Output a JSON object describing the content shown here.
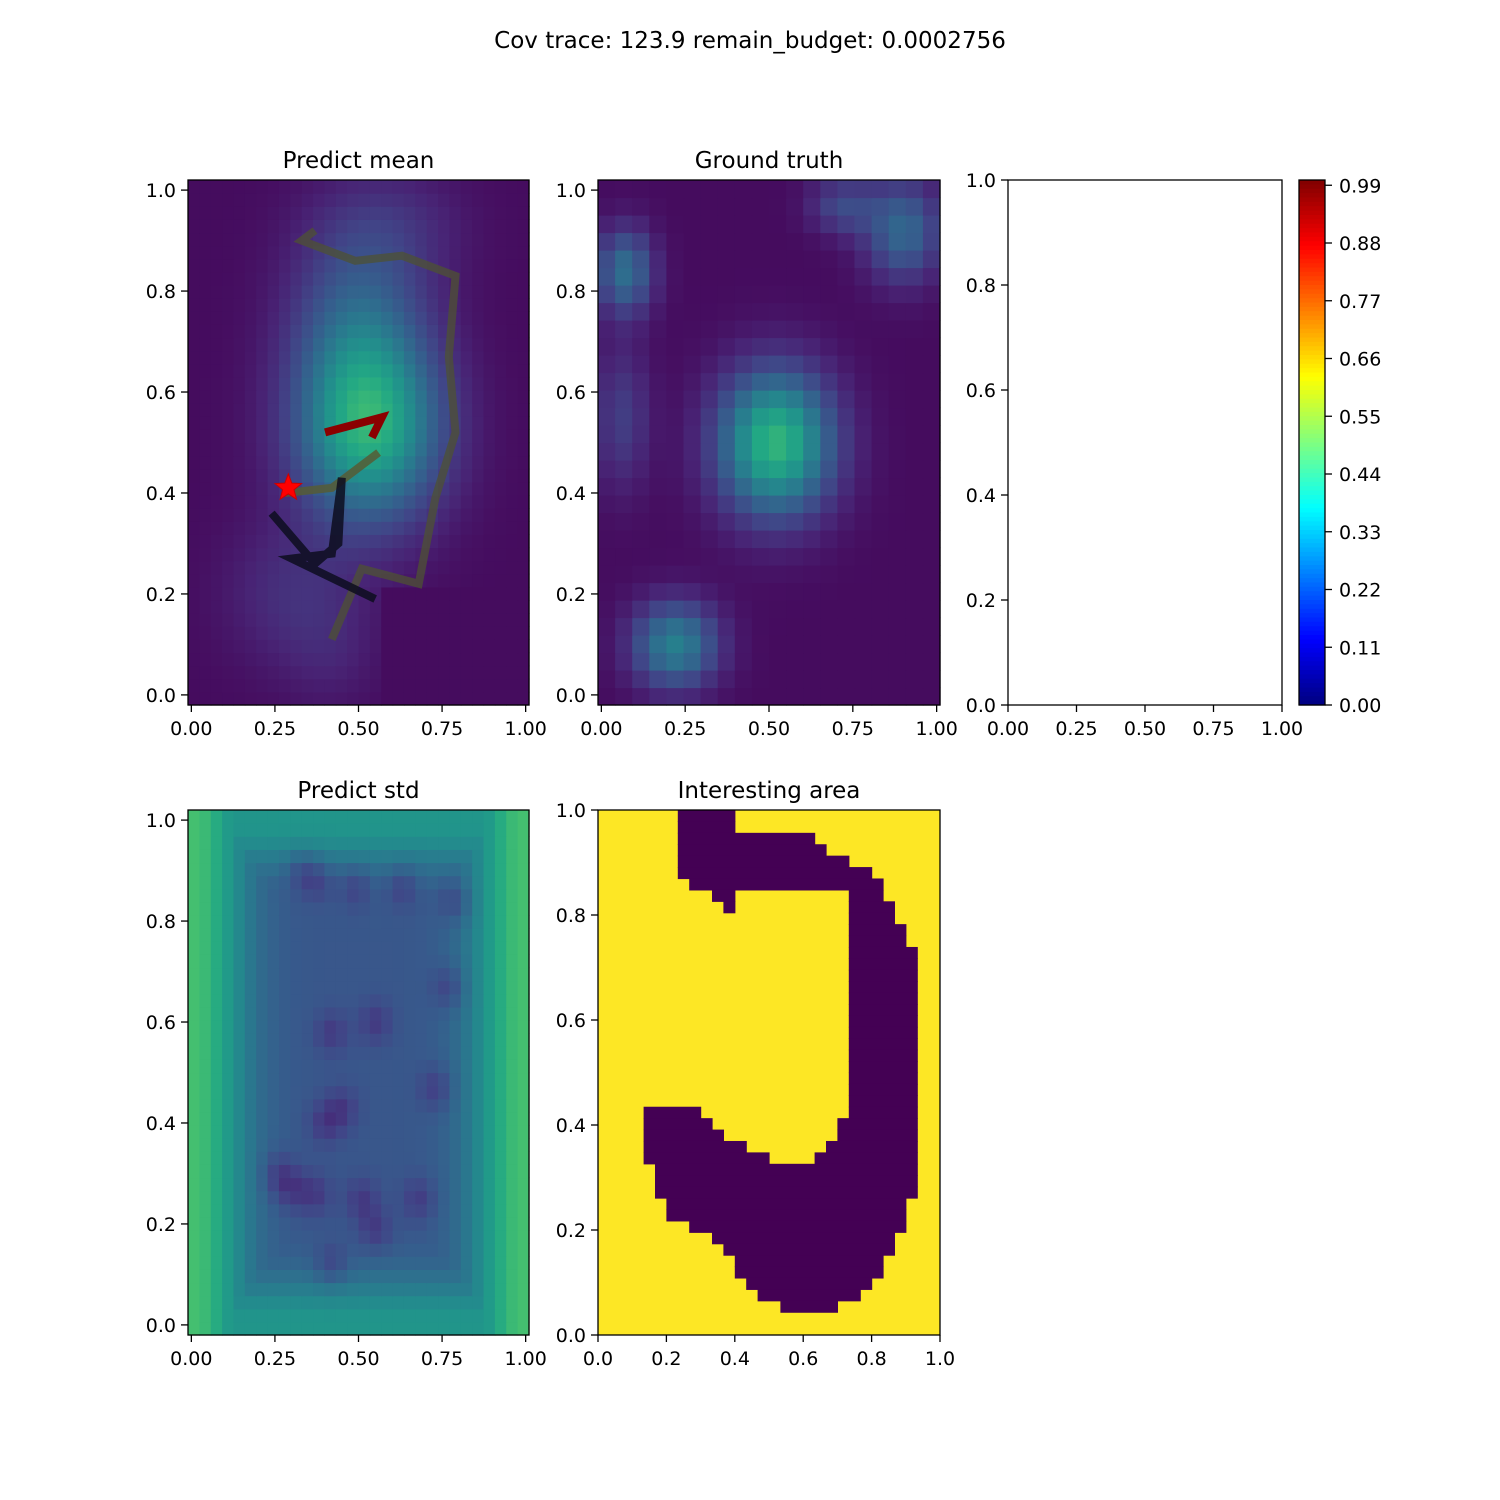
{
  "figure_title": "Cov trace: 123.9  remain_budget: 0.0002756",
  "chart_data": [
    {
      "id": "predict-mean",
      "type": "heatmap",
      "title": "Predict mean",
      "colormap": "viridis",
      "grid": false,
      "xlim": [
        -0.01,
        1.01
      ],
      "ylim": [
        -0.02,
        1.02
      ],
      "xticks": [
        "0.00",
        "0.25",
        "0.50",
        "0.75",
        "1.00"
      ],
      "yticks": [
        "0.0",
        "0.2",
        "0.4",
        "0.6",
        "0.8",
        "1.0"
      ],
      "field": {
        "nx": 30,
        "ny": 40,
        "base": 0.03,
        "blobs": [
          {
            "x": 0.53,
            "y": 0.53,
            "sx": 0.15,
            "sy": 0.13,
            "a": 0.6
          },
          {
            "x": 0.5,
            "y": 0.75,
            "sx": 0.14,
            "sy": 0.12,
            "a": 0.22
          },
          {
            "x": 0.58,
            "y": 0.93,
            "sx": 0.16,
            "sy": 0.08,
            "a": 0.1
          },
          {
            "x": 0.3,
            "y": 0.2,
            "sx": 0.14,
            "sy": 0.1,
            "a": 0.1
          },
          {
            "x": 0.42,
            "y": 0.08,
            "sx": 0.1,
            "sy": 0.08,
            "a": 0.05
          }
        ],
        "cutoff": {
          "x_min": 0.56,
          "y_max": 0.22,
          "value": 0.03
        }
      },
      "paths": [
        {
          "name": "trajectory-old",
          "color": "#4d5233",
          "opacity": 0.75,
          "points": [
            [
              0.42,
              0.11
            ],
            [
              0.51,
              0.25
            ],
            [
              0.68,
              0.22
            ],
            [
              0.73,
              0.39
            ],
            [
              0.79,
              0.52
            ],
            [
              0.77,
              0.67
            ],
            [
              0.79,
              0.83
            ],
            [
              0.63,
              0.87
            ],
            [
              0.49,
              0.86
            ],
            [
              0.33,
              0.9
            ],
            [
              0.37,
              0.92
            ],
            [
              0.33,
              0.9
            ]
          ]
        },
        {
          "name": "trajectory-mid",
          "color": "#565c35",
          "opacity": 0.85,
          "points": [
            [
              0.28,
              0.4
            ],
            [
              0.42,
              0.41
            ],
            [
              0.56,
              0.48
            ]
          ]
        },
        {
          "name": "trajectory-recent",
          "color": "#0d0d1f",
          "opacity": 0.85,
          "points": [
            [
              0.24,
              0.36
            ],
            [
              0.37,
              0.26
            ],
            [
              0.44,
              0.3
            ],
            [
              0.45,
              0.43
            ],
            [
              0.42,
              0.28
            ],
            [
              0.3,
              0.27
            ],
            [
              0.55,
              0.19
            ]
          ]
        },
        {
          "name": "trajectory-current",
          "color": "#8b0000",
          "opacity": 1.0,
          "points": [
            [
              0.4,
              0.52
            ],
            [
              0.57,
              0.55
            ],
            [
              0.54,
              0.51
            ]
          ]
        }
      ],
      "marker": {
        "type": "star",
        "x": 0.29,
        "y": 0.41,
        "color": "#ff0000"
      }
    },
    {
      "id": "ground-truth",
      "type": "heatmap",
      "title": "Ground truth",
      "colormap": "viridis",
      "grid": false,
      "xlim": [
        -0.01,
        1.01
      ],
      "ylim": [
        -0.02,
        1.02
      ],
      "xticks": [
        "0.00",
        "0.25",
        "0.50",
        "0.75",
        "1.00"
      ],
      "yticks": [
        "0.0",
        "0.2",
        "0.4",
        "0.6",
        "0.8",
        "1.0"
      ],
      "field": {
        "nx": 20,
        "ny": 30,
        "base": 0.03,
        "blobs": [
          {
            "x": 0.52,
            "y": 0.5,
            "sx": 0.12,
            "sy": 0.1,
            "a": 0.62
          },
          {
            "x": 0.22,
            "y": 0.1,
            "sx": 0.09,
            "sy": 0.06,
            "a": 0.4
          },
          {
            "x": 0.07,
            "y": 0.84,
            "sx": 0.06,
            "sy": 0.06,
            "a": 0.33
          },
          {
            "x": 0.9,
            "y": 0.92,
            "sx": 0.08,
            "sy": 0.07,
            "a": 0.3
          },
          {
            "x": 0.72,
            "y": 0.97,
            "sx": 0.07,
            "sy": 0.04,
            "a": 0.18
          },
          {
            "x": 0.06,
            "y": 0.55,
            "sx": 0.06,
            "sy": 0.1,
            "a": 0.15
          }
        ]
      }
    },
    {
      "id": "empty-axes",
      "type": "heatmap",
      "title": "",
      "xlim": [
        0,
        1
      ],
      "ylim": [
        0,
        1
      ],
      "xticks": [
        "0.00",
        "0.25",
        "0.50",
        "0.75",
        "1.00"
      ],
      "yticks": [
        "0.0",
        "0.2",
        "0.4",
        "0.6",
        "0.8",
        "1.0"
      ]
    },
    {
      "id": "colorbar",
      "type": "heatmap",
      "title": "",
      "colormap": "jet",
      "range": [
        0,
        1
      ],
      "ticks": [
        "0.00",
        "0.11",
        "0.22",
        "0.33",
        "0.44",
        "0.55",
        "0.66",
        "0.77",
        "0.88",
        "0.99"
      ],
      "tick_values": [
        0,
        0.11,
        0.22,
        0.33,
        0.44,
        0.55,
        0.66,
        0.77,
        0.88,
        0.99
      ]
    },
    {
      "id": "predict-std",
      "type": "heatmap",
      "title": "Predict std",
      "colormap": "viridis",
      "grid": false,
      "xlim": [
        -0.01,
        1.01
      ],
      "ylim": [
        -0.02,
        1.02
      ],
      "xticks": [
        "0.00",
        "0.25",
        "0.50",
        "0.75",
        "1.00"
      ],
      "yticks": [
        "0.0",
        "0.2",
        "0.4",
        "0.6",
        "0.8",
        "1.0"
      ],
      "field": {
        "nx": 30,
        "ny": 40,
        "mode": "std",
        "edge_high": 0.7,
        "interior_low": 0.27,
        "dips": [
          [
            0.33,
            0.9
          ],
          [
            0.38,
            0.88
          ],
          [
            0.49,
            0.87
          ],
          [
            0.63,
            0.87
          ],
          [
            0.79,
            0.84
          ],
          [
            0.77,
            0.67
          ],
          [
            0.55,
            0.6
          ],
          [
            0.42,
            0.58
          ],
          [
            0.73,
            0.47
          ],
          [
            0.45,
            0.43
          ],
          [
            0.4,
            0.4
          ],
          [
            0.37,
            0.26
          ],
          [
            0.3,
            0.27
          ],
          [
            0.26,
            0.3
          ],
          [
            0.51,
            0.25
          ],
          [
            0.55,
            0.19
          ],
          [
            0.42,
            0.12
          ],
          [
            0.68,
            0.25
          ]
        ]
      }
    },
    {
      "id": "interesting-area",
      "type": "heatmap",
      "title": "Interesting area",
      "colormap": "binary-viridis",
      "grid": false,
      "xlim": [
        0,
        1
      ],
      "ylim": [
        0,
        1
      ],
      "xticks": [
        "0.0",
        "0.2",
        "0.4",
        "0.6",
        "0.8",
        "1.0"
      ],
      "yticks": [
        "0.0",
        "0.2",
        "0.4",
        "0.6",
        "0.8",
        "1.0"
      ],
      "mask": {
        "nx": 30,
        "ny": 46,
        "dark_runs": [
          [
            [
              7,
              12
            ]
          ],
          [
            [
              7,
              12
            ]
          ],
          [
            [
              7,
              19
            ]
          ],
          [
            [
              7,
              20
            ]
          ],
          [
            [
              7,
              22
            ]
          ],
          [
            [
              7,
              24
            ]
          ],
          [
            [
              8,
              25
            ]
          ],
          [
            [
              10,
              12
            ],
            [
              22,
              25
            ]
          ],
          [
            [
              11,
              12
            ],
            [
              22,
              26
            ]
          ],
          [
            [
              22,
              26
            ]
          ],
          [
            [
              22,
              27
            ]
          ],
          [
            [
              22,
              27
            ]
          ],
          [
            [
              22,
              28
            ]
          ],
          [
            [
              22,
              28
            ]
          ],
          [
            [
              22,
              28
            ]
          ],
          [
            [
              22,
              28
            ]
          ],
          [
            [
              22,
              28
            ]
          ],
          [
            [
              22,
              28
            ]
          ],
          [
            [
              22,
              28
            ]
          ],
          [
            [
              22,
              28
            ]
          ],
          [
            [
              22,
              28
            ]
          ],
          [
            [
              22,
              28
            ]
          ],
          [
            [
              22,
              28
            ]
          ],
          [
            [
              22,
              28
            ]
          ],
          [
            [
              22,
              28
            ]
          ],
          [
            [
              22,
              28
            ]
          ],
          [
            [
              4,
              9
            ],
            [
              22,
              28
            ]
          ],
          [
            [
              4,
              10
            ],
            [
              21,
              28
            ]
          ],
          [
            [
              4,
              11
            ],
            [
              21,
              28
            ]
          ],
          [
            [
              4,
              13
            ],
            [
              20,
              28
            ]
          ],
          [
            [
              4,
              15
            ],
            [
              19,
              28
            ]
          ],
          [
            [
              5,
              28
            ]
          ],
          [
            [
              5,
              28
            ]
          ],
          [
            [
              5,
              28
            ]
          ],
          [
            [
              6,
              27
            ]
          ],
          [
            [
              6,
              27
            ]
          ],
          [
            [
              8,
              27
            ]
          ],
          [
            [
              10,
              26
            ]
          ],
          [
            [
              11,
              26
            ]
          ],
          [
            [
              12,
              25
            ]
          ],
          [
            [
              12,
              25
            ]
          ],
          [
            [
              13,
              24
            ]
          ],
          [
            [
              14,
              23
            ]
          ],
          [
            [
              16,
              21
            ]
          ],
          [],
          []
        ]
      }
    }
  ]
}
